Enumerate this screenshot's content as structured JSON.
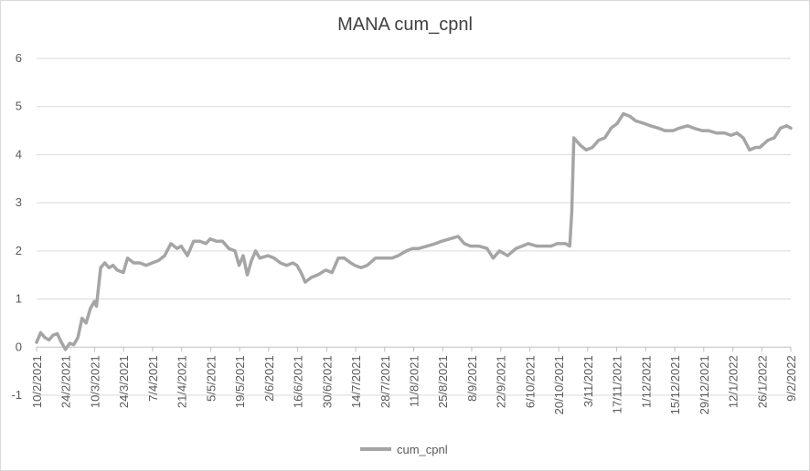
{
  "chart_data": {
    "type": "line",
    "title": "MANA cum_cpnl",
    "xlabel": "",
    "ylabel": "",
    "ylim": [
      -1,
      6
    ],
    "yticks": [
      -1,
      0,
      1,
      2,
      3,
      4,
      5,
      6
    ],
    "x_tick_labels": [
      "10/2/2021",
      "24/2/2021",
      "10/3/2021",
      "24/3/2021",
      "7/4/2021",
      "21/4/2021",
      "5/5/2021",
      "19/5/2021",
      "2/6/2021",
      "16/6/2021",
      "30/6/2021",
      "14/7/2021",
      "28/7/2021",
      "11/8/2021",
      "25/8/2021",
      "8/9/2021",
      "22/9/2021",
      "6/10/2021",
      "20/10/2021",
      "3/11/2021",
      "17/11/2021",
      "1/12/2021",
      "15/12/2021",
      "29/12/2021",
      "12/1/2022",
      "26/1/2022",
      "9/2/2022"
    ],
    "grid": true,
    "legend_position": "bottom",
    "color": "#a5a5a5",
    "series": [
      {
        "name": "cum_cpnl",
        "points": [
          [
            "2021-02-10",
            0.1
          ],
          [
            "2021-02-12",
            0.3
          ],
          [
            "2021-02-14",
            0.2
          ],
          [
            "2021-02-16",
            0.15
          ],
          [
            "2021-02-18",
            0.25
          ],
          [
            "2021-02-20",
            0.28
          ],
          [
            "2021-02-22",
            0.1
          ],
          [
            "2021-02-24",
            -0.05
          ],
          [
            "2021-02-26",
            0.08
          ],
          [
            "2021-02-28",
            0.05
          ],
          [
            "2021-03-02",
            0.2
          ],
          [
            "2021-03-04",
            0.6
          ],
          [
            "2021-03-06",
            0.5
          ],
          [
            "2021-03-08",
            0.8
          ],
          [
            "2021-03-10",
            0.95
          ],
          [
            "2021-03-11",
            0.85
          ],
          [
            "2021-03-13",
            1.65
          ],
          [
            "2021-03-15",
            1.75
          ],
          [
            "2021-03-17",
            1.65
          ],
          [
            "2021-03-19",
            1.7
          ],
          [
            "2021-03-21",
            1.6
          ],
          [
            "2021-03-24",
            1.55
          ],
          [
            "2021-03-26",
            1.85
          ],
          [
            "2021-03-29",
            1.75
          ],
          [
            "2021-04-01",
            1.75
          ],
          [
            "2021-04-04",
            1.7
          ],
          [
            "2021-04-07",
            1.75
          ],
          [
            "2021-04-10",
            1.8
          ],
          [
            "2021-04-13",
            1.9
          ],
          [
            "2021-04-16",
            2.15
          ],
          [
            "2021-04-19",
            2.05
          ],
          [
            "2021-04-21",
            2.1
          ],
          [
            "2021-04-24",
            1.9
          ],
          [
            "2021-04-27",
            2.2
          ],
          [
            "2021-04-30",
            2.2
          ],
          [
            "2021-05-03",
            2.15
          ],
          [
            "2021-05-05",
            2.25
          ],
          [
            "2021-05-08",
            2.2
          ],
          [
            "2021-05-11",
            2.2
          ],
          [
            "2021-05-14",
            2.05
          ],
          [
            "2021-05-17",
            2.0
          ],
          [
            "2021-05-19",
            1.7
          ],
          [
            "2021-05-21",
            1.9
          ],
          [
            "2021-05-23",
            1.5
          ],
          [
            "2021-05-25",
            1.8
          ],
          [
            "2021-05-27",
            2.0
          ],
          [
            "2021-05-29",
            1.85
          ],
          [
            "2021-06-02",
            1.9
          ],
          [
            "2021-06-05",
            1.85
          ],
          [
            "2021-06-08",
            1.75
          ],
          [
            "2021-06-11",
            1.7
          ],
          [
            "2021-06-14",
            1.75
          ],
          [
            "2021-06-16",
            1.7
          ],
          [
            "2021-06-18",
            1.55
          ],
          [
            "2021-06-20",
            1.35
          ],
          [
            "2021-06-23",
            1.45
          ],
          [
            "2021-06-26",
            1.5
          ],
          [
            "2021-06-30",
            1.6
          ],
          [
            "2021-07-03",
            1.55
          ],
          [
            "2021-07-06",
            1.85
          ],
          [
            "2021-07-09",
            1.85
          ],
          [
            "2021-07-12",
            1.75
          ],
          [
            "2021-07-14",
            1.7
          ],
          [
            "2021-07-17",
            1.65
          ],
          [
            "2021-07-20",
            1.7
          ],
          [
            "2021-07-24",
            1.85
          ],
          [
            "2021-07-28",
            1.85
          ],
          [
            "2021-08-01",
            1.85
          ],
          [
            "2021-08-04",
            1.9
          ],
          [
            "2021-08-08",
            2.0
          ],
          [
            "2021-08-11",
            2.05
          ],
          [
            "2021-08-14",
            2.05
          ],
          [
            "2021-08-18",
            2.1
          ],
          [
            "2021-08-22",
            2.15
          ],
          [
            "2021-08-25",
            2.2
          ],
          [
            "2021-08-29",
            2.25
          ],
          [
            "2021-09-02",
            2.3
          ],
          [
            "2021-09-05",
            2.15
          ],
          [
            "2021-09-08",
            2.1
          ],
          [
            "2021-09-12",
            2.1
          ],
          [
            "2021-09-16",
            2.05
          ],
          [
            "2021-09-19",
            1.85
          ],
          [
            "2021-09-22",
            2.0
          ],
          [
            "2021-09-26",
            1.9
          ],
          [
            "2021-09-30",
            2.05
          ],
          [
            "2021-10-03",
            2.1
          ],
          [
            "2021-10-06",
            2.15
          ],
          [
            "2021-10-10",
            2.1
          ],
          [
            "2021-10-14",
            2.1
          ],
          [
            "2021-10-17",
            2.1
          ],
          [
            "2021-10-20",
            2.15
          ],
          [
            "2021-10-24",
            2.15
          ],
          [
            "2021-10-26",
            2.1
          ],
          [
            "2021-10-27",
            2.8
          ],
          [
            "2021-10-28",
            4.35
          ],
          [
            "2021-10-31",
            4.2
          ],
          [
            "2021-11-03",
            4.1
          ],
          [
            "2021-11-06",
            4.15
          ],
          [
            "2021-11-09",
            4.3
          ],
          [
            "2021-11-12",
            4.35
          ],
          [
            "2021-11-15",
            4.55
          ],
          [
            "2021-11-18",
            4.65
          ],
          [
            "2021-11-21",
            4.85
          ],
          [
            "2021-11-24",
            4.8
          ],
          [
            "2021-11-27",
            4.7
          ],
          [
            "2021-12-01",
            4.65
          ],
          [
            "2021-12-04",
            4.6
          ],
          [
            "2021-12-08",
            4.55
          ],
          [
            "2021-12-11",
            4.5
          ],
          [
            "2021-12-15",
            4.5
          ],
          [
            "2021-12-18",
            4.55
          ],
          [
            "2021-12-22",
            4.6
          ],
          [
            "2021-12-25",
            4.55
          ],
          [
            "2021-12-29",
            4.5
          ],
          [
            "2022-01-01",
            4.5
          ],
          [
            "2022-01-05",
            4.45
          ],
          [
            "2022-01-09",
            4.45
          ],
          [
            "2022-01-12",
            4.4
          ],
          [
            "2022-01-15",
            4.45
          ],
          [
            "2022-01-18",
            4.35
          ],
          [
            "2022-01-21",
            4.1
          ],
          [
            "2022-01-24",
            4.15
          ],
          [
            "2022-01-26",
            4.15
          ],
          [
            "2022-01-30",
            4.3
          ],
          [
            "2022-02-02",
            4.35
          ],
          [
            "2022-02-05",
            4.55
          ],
          [
            "2022-02-08",
            4.6
          ],
          [
            "2022-02-10",
            4.55
          ]
        ]
      }
    ]
  }
}
